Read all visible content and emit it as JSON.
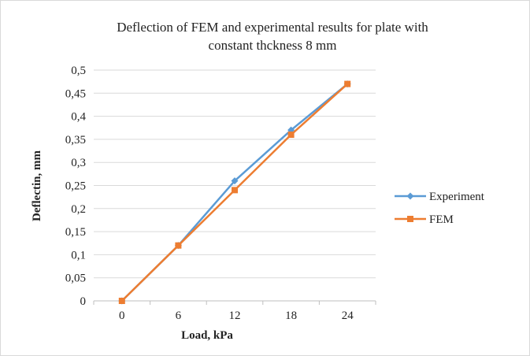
{
  "chart_data": {
    "type": "line",
    "title": "Deflection of FEM and experimental results for plate with constant thckness 8 mm",
    "title_lines": [
      "Deflection of FEM and experimental results for plate with",
      "constant thckness 8 mm"
    ],
    "xlabel": "Load, kPa",
    "ylabel": "Deflectin, mm",
    "categories": [
      "0",
      "6",
      "12",
      "18",
      "24"
    ],
    "ylim": [
      0,
      0.5
    ],
    "ytick_labels": [
      "0",
      "0,05",
      "0,1",
      "0,15",
      "0,2",
      "0,25",
      "0,3",
      "0,35",
      "0,4",
      "0,45",
      "0,5"
    ],
    "grid": true,
    "legend_position": "right",
    "series": [
      {
        "name": "Experiment",
        "values": [
          0,
          0.12,
          0.26,
          0.37,
          0.47
        ],
        "color": "#5b9bd5",
        "marker": "diamond"
      },
      {
        "name": "FEM",
        "values": [
          0,
          0.12,
          0.24,
          0.36,
          0.47
        ],
        "color": "#ed7d31",
        "marker": "square"
      }
    ]
  }
}
